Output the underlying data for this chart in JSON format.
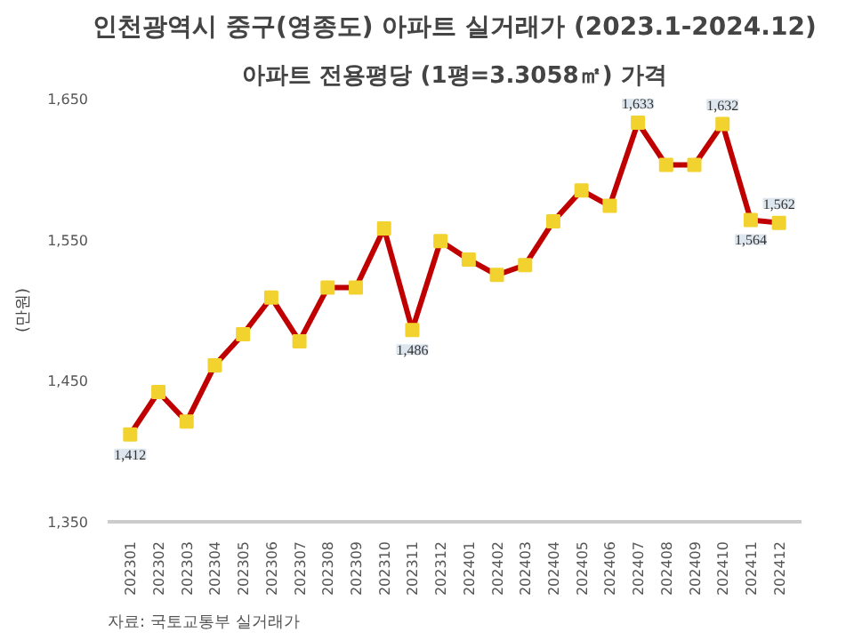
{
  "chart_data": {
    "type": "line",
    "title": "인천광역시 중구(영종도) 아파트 실거래가 (2023.1-2024.12)",
    "subtitle": "아파트 전용평당 (1평=3.3058㎡) 가격",
    "ylabel": "(만원)",
    "categories": [
      "202301",
      "202302",
      "202303",
      "202304",
      "202305",
      "202306",
      "202307",
      "202308",
      "202309",
      "202310",
      "202311",
      "202312",
      "202401",
      "202402",
      "202403",
      "202404",
      "202405",
      "202406",
      "202407",
      "202408",
      "202409",
      "202410",
      "202411",
      "202412"
    ],
    "series": [
      {
        "color": "#c00000",
        "values": [
          1412,
          1442,
          1421,
          1461,
          1483,
          1509,
          1478,
          1516,
          1516,
          1558,
          1486,
          1549,
          1536,
          1525,
          1532,
          1563,
          1585,
          1574,
          1633,
          1603,
          1603,
          1632,
          1564,
          1562
        ],
        "value_labels": [
          "1,412",
          null,
          null,
          null,
          null,
          null,
          null,
          null,
          null,
          null,
          "1,486",
          null,
          null,
          null,
          null,
          null,
          null,
          null,
          "1,633",
          null,
          null,
          "1,632",
          "1,564",
          "1,562"
        ]
      }
    ],
    "marker": "square",
    "ylim": [
      1350,
      1650
    ],
    "yticks": [
      {
        "value": 1350,
        "label": "1,350"
      },
      {
        "value": 1450,
        "label": "1,450"
      },
      {
        "value": 1550,
        "label": "1,550"
      },
      {
        "value": 1650,
        "label": "1,650"
      }
    ],
    "grid": false,
    "annotations": [
      "자료: 국토교통부 실거래가"
    ]
  }
}
